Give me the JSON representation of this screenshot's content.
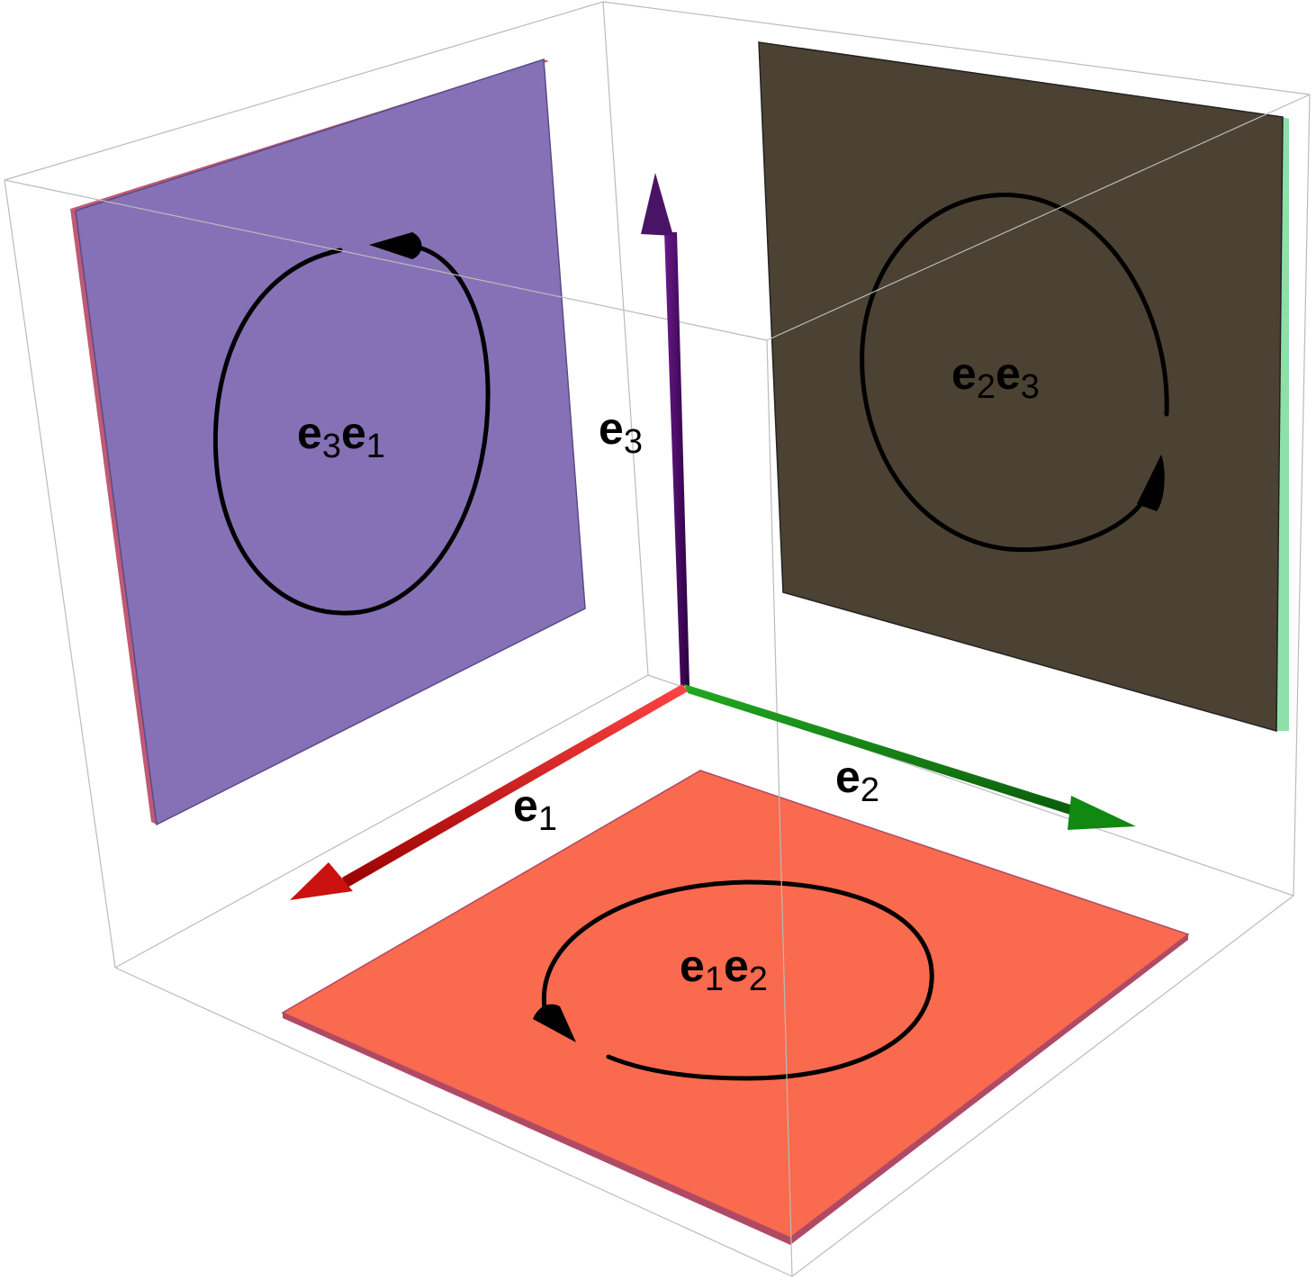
{
  "axes": {
    "e1": {
      "base": "e",
      "sub": "1",
      "color": "#cc0000"
    },
    "e2": {
      "base": "e",
      "sub": "2",
      "color": "#118811"
    },
    "e3": {
      "base": "e",
      "sub": "3",
      "color": "#440066"
    }
  },
  "planes": {
    "e3e1": {
      "b1": "e",
      "s1": "3",
      "b2": "e",
      "s2": "1",
      "fill": "#8671b6"
    },
    "e2e3": {
      "b1": "e",
      "s1": "2",
      "b2": "e",
      "s2": "3",
      "fill": "#4b4233"
    },
    "e1e2": {
      "b1": "e",
      "s1": "1",
      "b2": "e",
      "s2": "2",
      "fill": "#f96a4e"
    }
  },
  "box_edge_color": "#bbbbbb",
  "orientation_color": "#000000"
}
